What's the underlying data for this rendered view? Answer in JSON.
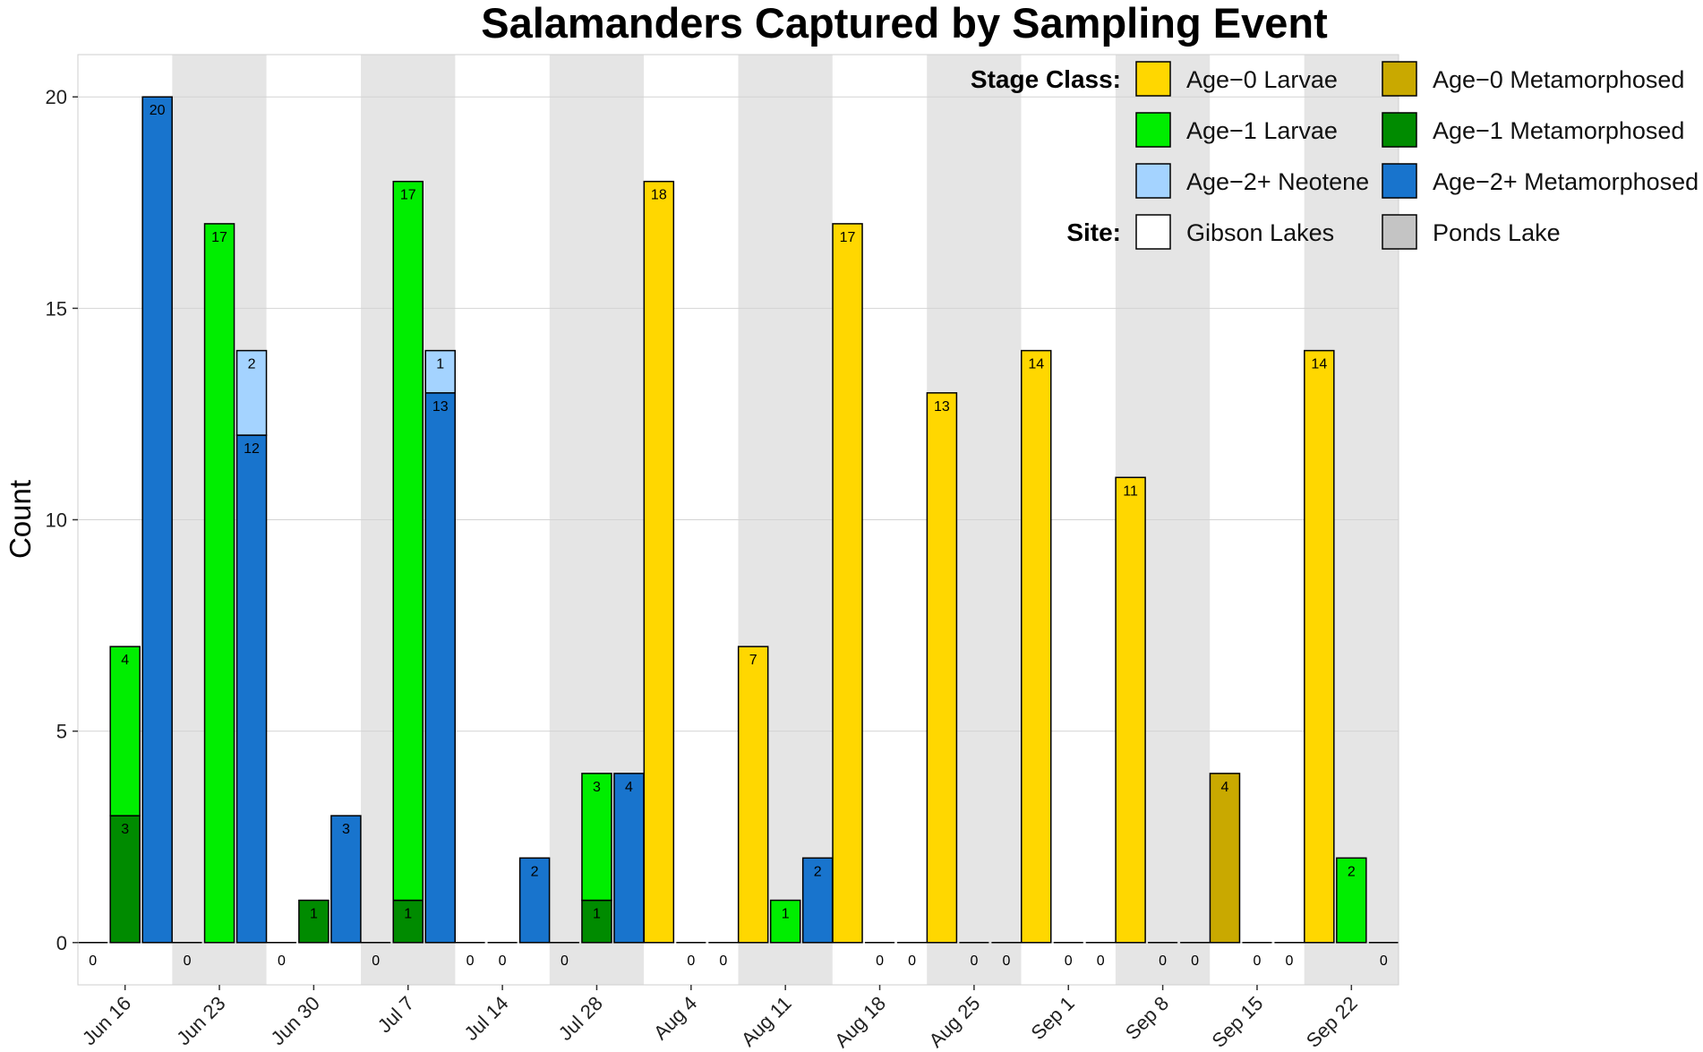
{
  "chart_data": {
    "type": "bar",
    "title": "Salamanders Captured by Sampling Event",
    "ylabel": "Count",
    "xlabel": "",
    "ylim": [
      -1,
      21
    ],
    "yticks": [
      0,
      5,
      10,
      15,
      20
    ],
    "grid": true,
    "categories": [
      "Jun 16",
      "Jun 23",
      "Jun 30",
      "Jul 7",
      "Jul 14",
      "Jul 28",
      "Aug 4",
      "Aug 11",
      "Aug 18",
      "Aug 25",
      "Sep 1",
      "Sep 8",
      "Sep 15",
      "Sep 22"
    ],
    "site_by_category": [
      "Gibson Lakes",
      "Ponds Lake",
      "Gibson Lakes",
      "Ponds Lake",
      "Gibson Lakes",
      "Ponds Lake",
      "Gibson Lakes",
      "Ponds Lake",
      "Gibson Lakes",
      "Ponds Lake",
      "Gibson Lakes",
      "Ponds Lake",
      "Gibson Lakes",
      "Ponds Lake"
    ],
    "stage_colors": {
      "Age-0 Larvae": "#FFD700",
      "Age-0 Metamorphosed": "#C9A900",
      "Age-1 Larvae": "#00EE00",
      "Age-1 Metamorphosed": "#008B00",
      "Age-2+ Neotene": "#A4D3FF",
      "Age-2+ Metamorphosed": "#1874CD"
    },
    "site_colors": {
      "Gibson Lakes": "#FFFFFF",
      "Ponds Lake": "#E5E5E5"
    },
    "groups": [
      {
        "category": "Jun 16",
        "bars": [
          {
            "total": 0,
            "segments": [],
            "label": "0"
          },
          {
            "total": 7,
            "segments": [
              {
                "stage": "Age-1 Metamorphosed",
                "value": 3,
                "label": "3"
              },
              {
                "stage": "Age-1 Larvae",
                "value": 4,
                "label": "4"
              }
            ]
          },
          {
            "total": 20,
            "segments": [
              {
                "stage": "Age-2+ Metamorphosed",
                "value": 20,
                "label": "20"
              }
            ]
          }
        ]
      },
      {
        "category": "Jun 23",
        "bars": [
          {
            "total": 0,
            "segments": [],
            "label": "0"
          },
          {
            "total": 17,
            "segments": [
              {
                "stage": "Age-1 Larvae",
                "value": 17,
                "label": "17"
              }
            ]
          },
          {
            "total": 14,
            "segments": [
              {
                "stage": "Age-2+ Metamorphosed",
                "value": 12,
                "label": "12"
              },
              {
                "stage": "Age-2+ Neotene",
                "value": 2,
                "label": "2"
              }
            ]
          }
        ]
      },
      {
        "category": "Jun 30",
        "bars": [
          {
            "total": 0,
            "segments": [],
            "label": "0"
          },
          {
            "total": 1,
            "segments": [
              {
                "stage": "Age-1 Metamorphosed",
                "value": 1,
                "label": "1"
              }
            ]
          },
          {
            "total": 3,
            "segments": [
              {
                "stage": "Age-2+ Metamorphosed",
                "value": 3,
                "label": "3"
              }
            ]
          }
        ]
      },
      {
        "category": "Jul 7",
        "bars": [
          {
            "total": 0,
            "segments": [],
            "label": "0"
          },
          {
            "total": 18,
            "segments": [
              {
                "stage": "Age-1 Metamorphosed",
                "value": 1,
                "label": "1"
              },
              {
                "stage": "Age-1 Larvae",
                "value": 17,
                "label": "17"
              }
            ]
          },
          {
            "total": 14,
            "segments": [
              {
                "stage": "Age-2+ Metamorphosed",
                "value": 13,
                "label": "13"
              },
              {
                "stage": "Age-2+ Neotene",
                "value": 1,
                "label": "1"
              }
            ]
          }
        ]
      },
      {
        "category": "Jul 14",
        "bars": [
          {
            "total": 0,
            "segments": [],
            "label": "0"
          },
          {
            "total": 0,
            "segments": [],
            "label": "0"
          },
          {
            "total": 2,
            "segments": [
              {
                "stage": "Age-2+ Metamorphosed",
                "value": 2,
                "label": "2"
              }
            ]
          }
        ]
      },
      {
        "category": "Jul 28",
        "bars": [
          {
            "total": 0,
            "segments": [],
            "label": "0"
          },
          {
            "total": 4,
            "segments": [
              {
                "stage": "Age-1 Metamorphosed",
                "value": 1,
                "label": "1"
              },
              {
                "stage": "Age-1 Larvae",
                "value": 3,
                "label": "3"
              }
            ]
          },
          {
            "total": 4,
            "segments": [
              {
                "stage": "Age-2+ Metamorphosed",
                "value": 4,
                "label": "4"
              }
            ]
          }
        ]
      },
      {
        "category": "Aug 4",
        "bars": [
          {
            "total": 18,
            "segments": [
              {
                "stage": "Age-0 Larvae",
                "value": 18,
                "label": "18"
              }
            ]
          },
          {
            "total": 0,
            "segments": [],
            "label": "0"
          },
          {
            "total": 0,
            "segments": [],
            "label": "0"
          }
        ]
      },
      {
        "category": "Aug 11",
        "bars": [
          {
            "total": 7,
            "segments": [
              {
                "stage": "Age-0 Larvae",
                "value": 7,
                "label": "7"
              }
            ]
          },
          {
            "total": 1,
            "segments": [
              {
                "stage": "Age-1 Larvae",
                "value": 1,
                "label": "1"
              }
            ]
          },
          {
            "total": 2,
            "segments": [
              {
                "stage": "Age-2+ Metamorphosed",
                "value": 2,
                "label": "2"
              }
            ]
          }
        ]
      },
      {
        "category": "Aug 18",
        "bars": [
          {
            "total": 17,
            "segments": [
              {
                "stage": "Age-0 Larvae",
                "value": 17,
                "label": "17"
              }
            ]
          },
          {
            "total": 0,
            "segments": [],
            "label": "0"
          },
          {
            "total": 0,
            "segments": [],
            "label": "0"
          }
        ]
      },
      {
        "category": "Aug 25",
        "bars": [
          {
            "total": 13,
            "segments": [
              {
                "stage": "Age-0 Larvae",
                "value": 13,
                "label": "13"
              }
            ]
          },
          {
            "total": 0,
            "segments": [],
            "label": "0"
          },
          {
            "total": 0,
            "segments": [],
            "label": "0"
          }
        ]
      },
      {
        "category": "Sep 1",
        "bars": [
          {
            "total": 14,
            "segments": [
              {
                "stage": "Age-0 Larvae",
                "value": 14,
                "label": "14"
              }
            ]
          },
          {
            "total": 0,
            "segments": [],
            "label": "0"
          },
          {
            "total": 0,
            "segments": [],
            "label": "0"
          }
        ]
      },
      {
        "category": "Sep 8",
        "bars": [
          {
            "total": 11,
            "segments": [
              {
                "stage": "Age-0 Larvae",
                "value": 11,
                "label": "11"
              }
            ]
          },
          {
            "total": 0,
            "segments": [],
            "label": "0"
          },
          {
            "total": 0,
            "segments": [],
            "label": "0"
          }
        ]
      },
      {
        "category": "Sep 15",
        "bars": [
          {
            "total": 4,
            "segments": [
              {
                "stage": "Age-0 Metamorphosed",
                "value": 4,
                "label": "4"
              }
            ]
          },
          {
            "total": 0,
            "segments": [],
            "label": "0"
          },
          {
            "total": 0,
            "segments": [],
            "label": "0"
          }
        ]
      },
      {
        "category": "Sep 22",
        "bars": [
          {
            "total": 14,
            "segments": [
              {
                "stage": "Age-0 Larvae",
                "value": 14,
                "label": "14"
              }
            ]
          },
          {
            "total": 2,
            "segments": [
              {
                "stage": "Age-1 Larvae",
                "value": 2,
                "label": "2"
              }
            ]
          },
          {
            "total": 0,
            "segments": [],
            "label": "0"
          }
        ]
      }
    ],
    "legend": {
      "placement": "top-right",
      "stage_heading": "Stage Class:",
      "site_heading": "Site:",
      "stage_items": [
        "Age-0 Larvae",
        "Age-0 Metamorphosed",
        "Age-1 Larvae",
        "Age-1 Metamorphosed",
        "Age-2+ Neotene",
        "Age-2+ Metamorphosed"
      ],
      "site_items": [
        "Gibson Lakes",
        "Ponds Lake"
      ],
      "stage_item_text": [
        "Age−0 Larvae",
        "Age−0 Metamorphosed",
        "Age−1 Larvae",
        "Age−1 Metamorphosed",
        "Age−2+ Neotene",
        "Age−2+ Metamorphosed"
      ]
    }
  }
}
